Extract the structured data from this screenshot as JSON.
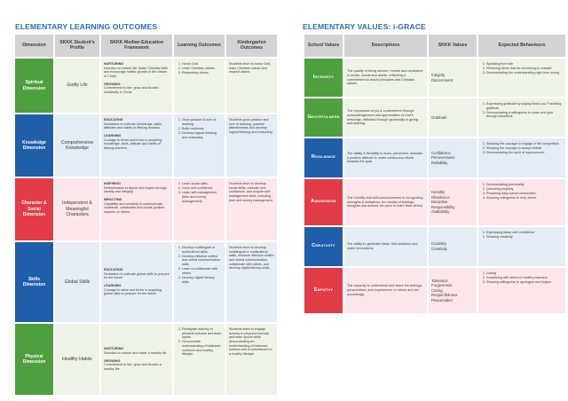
{
  "left": {
    "title": "ELEMENTARY LEARNING OUTCOMES",
    "headers": [
      "Dimension",
      "SKKK Student's Profile",
      "SKKK Median Education Framework",
      "Learning Outcomes",
      "Kindergarten Outcomes"
    ],
    "rows": [
      {
        "dimension": "Spiritual Dimension",
        "profile": "Godly Life",
        "framework": [
          {
            "heading": "NURTURING",
            "text": "Devotion to nurture life, foster Christian faith and encourage holistic growth in the virtues of Christ."
          },
          {
            "heading": "GROWING",
            "text": "Commitment to live, grow and flourish holistically in Christ."
          }
        ],
        "outcomes": [
          "Honor God",
          "Learn Christian values",
          "Respecting others"
        ],
        "kinder": "Students learn to honor God, learn Christian values and respect others."
      },
      {
        "dimension": "Knowledge Dimension",
        "profile": "Comprehensive Knowledge",
        "framework": [
          {
            "heading": "EDUCATING",
            "text": "Dedication to cultivate knowledge, skills, attitudes and habits of lifelong learners."
          },
          {
            "heading": "LEARNING",
            "text": "Courage to thrive and thrive in acquiring knowledge, skills, attitude and habits of lifelong learners."
          }
        ],
        "outcomes": [
          "Grow passion & love of learning",
          "Build resilience",
          "Develop logical thinking and reasoning"
        ],
        "kinder": "Students grow passion and love of learning, practice attentiveness and develop logical thinking and reasoning."
      },
      {
        "dimension": "Character & Social Dimension",
        "profile": "Independent & Meaningful Characters",
        "framework": [
          {
            "heading": "INSPIRING",
            "text": "Determination to aspire and inspire through identity and integrity."
          },
          {
            "heading": "IMPACTING",
            "text": "Capability and creativity to communicate, contribute, collaborate and create positive impacts on others."
          }
        ],
        "outcomes": [
          "Learn social skills",
          "Grow self-confidence",
          "Learn self-management (time and money management)"
        ],
        "kinder": "Students learn to develop social skills, cultivate self-confidence, and acquire self-management skills, including time and money management."
      },
      {
        "dimension": "Skills Dimension",
        "profile": "Global Skills",
        "framework": [
          {
            "heading": "EDUCATING",
            "text": "Dedication to cultivate global skills to prepare for the future."
          },
          {
            "heading": "LEARNING",
            "text": "Courage to strive and thrive in acquiring global skills to prepare for the future."
          }
        ],
        "outcomes": [
          "Develop multilingual or multicultural skills",
          "Develop effective written and verbal communication skills",
          "Learn to collaborate with others",
          "Develop digital literacy skills"
        ],
        "kinder": "Students learn to develop multilingual or multicultural skills, enhance effective written and verbal communication, collaborate with others, and develop digital literacy skills."
      },
      {
        "dimension": "Physical Dimension",
        "profile": "Healthy Habits",
        "framework": [
          {
            "heading": "NURTURING",
            "text": "Devotion to nurture and foster a healthy life."
          },
          {
            "heading": "GROWING",
            "text": "Commitment to live, grow and flourish a healthy life."
          }
        ],
        "outcomes": [
          "Participate actively in physical exercise and team sports",
          "Demonstrate understanding of balanced nutritions and healthy lifestyle"
        ],
        "kinder": "Students learn to engage actively in physical exercise and team sports while demonstrating an understanding of balanced nutrition and a commitment to a healthy lifestyle."
      }
    ]
  },
  "right": {
    "title": "ELEMENTARY VALUES: i-GRACE",
    "headers": [
      "School Values",
      "Descriptions",
      "SKKK Values",
      "Expected Behaviours"
    ],
    "rows": [
      {
        "value": "Integrity",
        "description": "The quality of being sincere, honest and consistent in minds, words and deeds, reflecting a commitment to moral principles and Christian values.",
        "skkk": [
          "Integrity",
          "Discernment"
        ],
        "behaviours": [
          "Speaking the truth",
          "Returning items that do not belong to oneself",
          "Demonstrating the understanding right from wrong"
        ]
      },
      {
        "value": "Gratefulness",
        "description": "The expression of joy & contentment through acknowledgement and appreciation of God's blessings, reflected through generosity in giving and sharing.",
        "skkk": [
          "Gratitude"
        ],
        "behaviours": [
          "Expressing gratitude by saying thank you Practicing gratitude",
          "Demonstrating a willingness to share and give through donations"
        ]
      },
      {
        "value": "Resilience",
        "description": "The ability & flexibility to learn, persevere, maintain a positive attitude to make continuous efforts towards the goal.",
        "skkk": [
          "Confidence",
          "Perseverance",
          "Reliability"
        ],
        "behaviours": [
          "Showing the courage to engage in fair competition",
          "Showing the courage to accept defeat",
          "Demonstrating the spirit of improvement"
        ]
      },
      {
        "value": "Awareness",
        "description": "The humility and self-consciousness in recognizing strengths & limitations, be mindful of feelings, thoughts and actions, be open to learn from others.",
        "skkk": [
          "Humility",
          "Obedience",
          "Discipline",
          "Responsibility",
          "Availability"
        ],
        "behaviours": [
          "Demonstrating punctuality",
          "Queueing properly",
          "Preparing daily school necessities",
          "Showing willingness to help others"
        ]
      },
      {
        "value": "Creativity",
        "description": "The ability to generate ideas, find solutions and make innovations.",
        "skkk": [
          "Curiosity",
          "Creativity"
        ],
        "behaviours": [
          "Expressing ideas with confidence",
          "Showing creativity"
        ]
      },
      {
        "value": "Empathy",
        "description": "The capacity to understand and share the feelings, perspectives, and experiences of others and act accordingly.",
        "skkk": [
          "Tolerance",
          "Forgiveness",
          "Caring",
          "Respectfulness",
          "Peacemaker"
        ],
        "behaviours": [
          "Caring",
          "Socializing with others in healthy manners",
          "Showing willingness to apologize and forgive"
        ]
      }
    ]
  }
}
